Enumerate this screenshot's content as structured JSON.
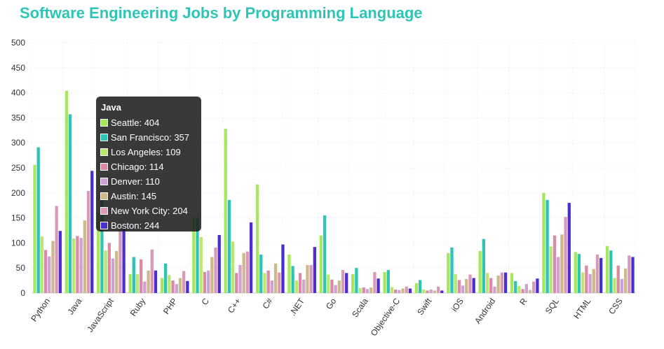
{
  "chart_data": {
    "type": "bar",
    "title": "Software Engineering Jobs by Programming Language",
    "xlabel": "",
    "ylabel": "",
    "ylim": [
      0,
      500
    ],
    "yticks": [
      0,
      50,
      100,
      150,
      200,
      250,
      300,
      350,
      400,
      450,
      500
    ],
    "grid": true,
    "categories": [
      "Python",
      "Java",
      "JavaScript",
      "Ruby",
      "PHP",
      "C",
      "C++",
      "C#",
      ".NET",
      "Go",
      "Scala",
      "Objective-C",
      "Swift",
      "iOS",
      "Android",
      "R",
      "SQL",
      "HTML",
      "CSS"
    ],
    "series": [
      {
        "name": "Seattle",
        "color": "#a6e85c",
        "values": [
          256,
          404,
          160,
          38,
          30,
          150,
          328,
          217,
          77,
          115,
          38,
          42,
          20,
          80,
          84,
          40,
          200,
          82,
          94
        ]
      },
      {
        "name": "San Francisco",
        "color": "#2ec4b6",
        "values": [
          291,
          357,
          190,
          72,
          59,
          150,
          186,
          77,
          54,
          155,
          50,
          46,
          26,
          91,
          108,
          24,
          186,
          78,
          85
        ]
      },
      {
        "name": "Los Angeles",
        "color": "#b9e870",
        "values": [
          113,
          109,
          85,
          38,
          36,
          112,
          103,
          40,
          25,
          37,
          10,
          12,
          7,
          38,
          40,
          14,
          93,
          41,
          30
        ]
      },
      {
        "name": "Chicago",
        "color": "#d98aa6",
        "values": [
          86,
          114,
          100,
          67,
          25,
          42,
          40,
          45,
          40,
          27,
          11,
          7,
          5,
          26,
          30,
          8,
          115,
          55,
          55
        ]
      },
      {
        "name": "Denver",
        "color": "#cfa0d2",
        "values": [
          73,
          110,
          69,
          23,
          18,
          45,
          56,
          25,
          27,
          16,
          8,
          6,
          7,
          15,
          13,
          18,
          72,
          38,
          28
        ]
      },
      {
        "name": "Austin",
        "color": "#cdb98a",
        "values": [
          104,
          145,
          84,
          45,
          30,
          72,
          80,
          59,
          56,
          25,
          11,
          9,
          5,
          28,
          35,
          6,
          117,
          48,
          49
        ]
      },
      {
        "name": "New York City",
        "color": "#d99ab8",
        "values": [
          174,
          204,
          130,
          87,
          44,
          91,
          83,
          41,
          56,
          46,
          42,
          13,
          13,
          37,
          41,
          23,
          152,
          77,
          75
        ]
      },
      {
        "name": "Boston",
        "color": "#4a2fd0",
        "values": [
          124,
          244,
          134,
          45,
          24,
          116,
          141,
          97,
          92,
          40,
          29,
          9,
          5,
          30,
          41,
          29,
          180,
          70,
          72
        ]
      }
    ]
  },
  "tooltip": {
    "title": "Java",
    "rows": [
      "Seattle: 404",
      "San Francisco: 357",
      "Los Angeles: 109",
      "Chicago: 114",
      "Denver: 110",
      "Austin: 145",
      "New York City: 204",
      "Boston: 244"
    ]
  }
}
